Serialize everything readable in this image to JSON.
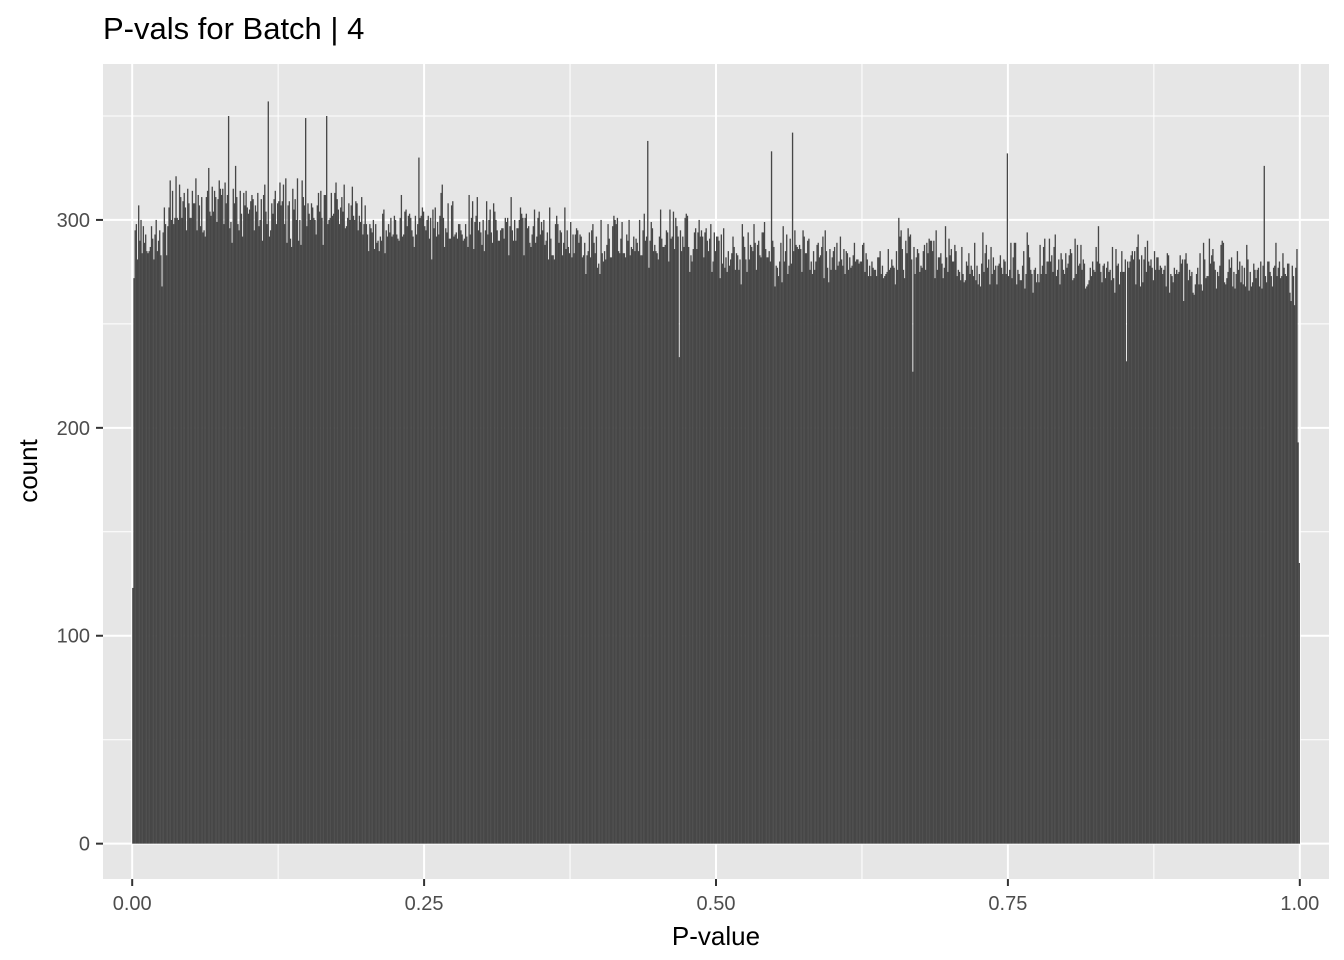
{
  "chart_data": {
    "type": "bar",
    "title": "P-vals for Batch | 4",
    "xlabel": "P-value",
    "ylabel": "count",
    "xlim": [
      -0.025,
      1.025
    ],
    "ylim": [
      -17,
      375
    ],
    "x_ticks": [
      0.0,
      0.25,
      0.5,
      0.75,
      1.0
    ],
    "x_tick_labels": [
      "0.00",
      "0.25",
      "0.50",
      "0.75",
      "1.00"
    ],
    "y_ticks": [
      0,
      100,
      200,
      300
    ],
    "y_tick_labels": [
      "0",
      "100",
      "200",
      "300"
    ],
    "grid": true,
    "bins": 1000,
    "bin_range": [
      0,
      1
    ],
    "bar_color": "#474747",
    "panel_background": "#e6e6e6",
    "grid_color": "#ffffff",
    "segments": [
      {
        "x0": 0.0,
        "x1": 0.002,
        "mean": 200,
        "spread": 70
      },
      {
        "x0": 0.002,
        "x1": 0.03,
        "mean": 290,
        "spread": 24
      },
      {
        "x0": 0.03,
        "x1": 0.12,
        "mean": 305,
        "spread": 24
      },
      {
        "x0": 0.12,
        "x1": 0.2,
        "mean": 305,
        "spread": 24
      },
      {
        "x0": 0.2,
        "x1": 0.35,
        "mean": 298,
        "spread": 20
      },
      {
        "x0": 0.35,
        "x1": 0.5,
        "mean": 290,
        "spread": 20
      },
      {
        "x0": 0.5,
        "x1": 0.7,
        "mean": 283,
        "spread": 20
      },
      {
        "x0": 0.7,
        "x1": 0.9,
        "mean": 278,
        "spread": 20
      },
      {
        "x0": 0.9,
        "x1": 0.998,
        "mean": 276,
        "spread": 20
      },
      {
        "x0": 0.998,
        "x1": 1.0,
        "mean": 200,
        "spread": 70
      }
    ],
    "peaks": [
      {
        "x": 0.0,
        "value": 123
      },
      {
        "x": 0.001,
        "value": 272
      },
      {
        "x": 0.082,
        "value": 350
      },
      {
        "x": 0.116,
        "value": 357
      },
      {
        "x": 0.148,
        "value": 349
      },
      {
        "x": 0.166,
        "value": 350
      },
      {
        "x": 0.245,
        "value": 330
      },
      {
        "x": 0.441,
        "value": 338
      },
      {
        "x": 0.469,
        "value": 234
      },
      {
        "x": 0.547,
        "value": 333
      },
      {
        "x": 0.566,
        "value": 342
      },
      {
        "x": 0.668,
        "value": 227
      },
      {
        "x": 0.749,
        "value": 332
      },
      {
        "x": 0.851,
        "value": 232
      },
      {
        "x": 0.969,
        "value": 326
      },
      {
        "x": 1.0,
        "value": 135
      }
    ]
  }
}
